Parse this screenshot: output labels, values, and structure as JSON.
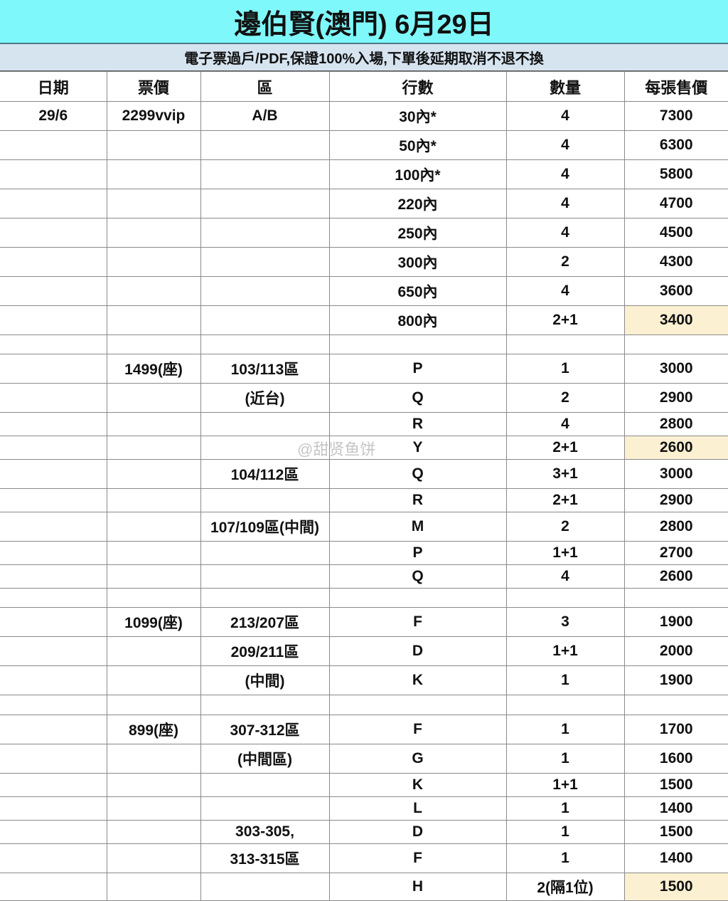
{
  "title": "邊伯賢(澳門) 6月29日",
  "notice": "電子票過戶/PDF,保證100%入場,下單後延期取消不退不換",
  "watermark": "@甜贤鱼饼",
  "highlight_color": "#fcf0d2",
  "columns": [
    "日期",
    "票價",
    "區",
    "行數",
    "數量",
    "每張售價"
  ],
  "rows": [
    [
      "29/6",
      "2299vvip",
      "A/B",
      "30內*",
      "4",
      "7300",
      0,
      41
    ],
    [
      "",
      "",
      "",
      "50內*",
      "4",
      "6300",
      0,
      41
    ],
    [
      "",
      "",
      "",
      "100內*",
      "4",
      "5800",
      0,
      41
    ],
    [
      "",
      "",
      "",
      "220內",
      "4",
      "4700",
      0,
      41
    ],
    [
      "",
      "",
      "",
      "250內",
      "4",
      "4500",
      0,
      41
    ],
    [
      "",
      "",
      "",
      "300內",
      "2",
      "4300",
      0,
      41
    ],
    [
      "",
      "",
      "",
      "650內",
      "4",
      "3600",
      0,
      41
    ],
    [
      "",
      "",
      "",
      "800內",
      "2+1",
      "3400",
      1,
      41
    ],
    [
      "",
      "",
      "",
      "",
      "",
      "",
      0,
      27
    ],
    [
      "",
      "1499(座)",
      "103/113區",
      "P",
      "1",
      "3000",
      0,
      41
    ],
    [
      "",
      "",
      "(近台)",
      "Q",
      "2",
      "2900",
      0,
      41
    ],
    [
      "",
      "",
      "",
      "R",
      "4",
      "2800",
      0,
      33
    ],
    [
      "",
      "",
      "",
      "Y",
      "2+1",
      "2600",
      1,
      33
    ],
    [
      "",
      "",
      "104/112區",
      "Q",
      "3+1",
      "3000",
      0,
      41
    ],
    [
      "",
      "",
      "",
      "R",
      "2+1",
      "2900",
      0,
      33
    ],
    [
      "",
      "",
      "107/109區(中間)",
      "M",
      "2",
      "2800",
      0,
      41
    ],
    [
      "",
      "",
      "",
      "P",
      "1+1",
      "2700",
      0,
      33
    ],
    [
      "",
      "",
      "",
      "Q",
      "4",
      "2600",
      0,
      33
    ],
    [
      "",
      "",
      "",
      "",
      "",
      "",
      0,
      27
    ],
    [
      "",
      "1099(座)",
      "213/207區",
      "F",
      "3",
      "1900",
      0,
      41
    ],
    [
      "",
      "",
      "209/211區",
      "D",
      "1+1",
      "2000",
      0,
      41
    ],
    [
      "",
      "",
      "(中間)",
      "K",
      "1",
      "1900",
      0,
      41
    ],
    [
      "",
      "",
      "",
      "",
      "",
      "",
      0,
      28
    ],
    [
      "",
      "899(座)",
      "307-312區",
      "F",
      "1",
      "1700",
      0,
      41
    ],
    [
      "",
      "",
      "(中間區)",
      "G",
      "1",
      "1600",
      0,
      41
    ],
    [
      "",
      "",
      "",
      "K",
      "1+1",
      "1500",
      0,
      33
    ],
    [
      "",
      "",
      "",
      "L",
      "1",
      "1400",
      0,
      33
    ],
    [
      "",
      "",
      "303-305,",
      "D",
      "1",
      "1500",
      0,
      33
    ],
    [
      "",
      "",
      "313-315區",
      "F",
      "1",
      "1400",
      0,
      41
    ],
    [
      "",
      "",
      "",
      "H",
      "2(隔1位)",
      "1500",
      1,
      39
    ]
  ]
}
